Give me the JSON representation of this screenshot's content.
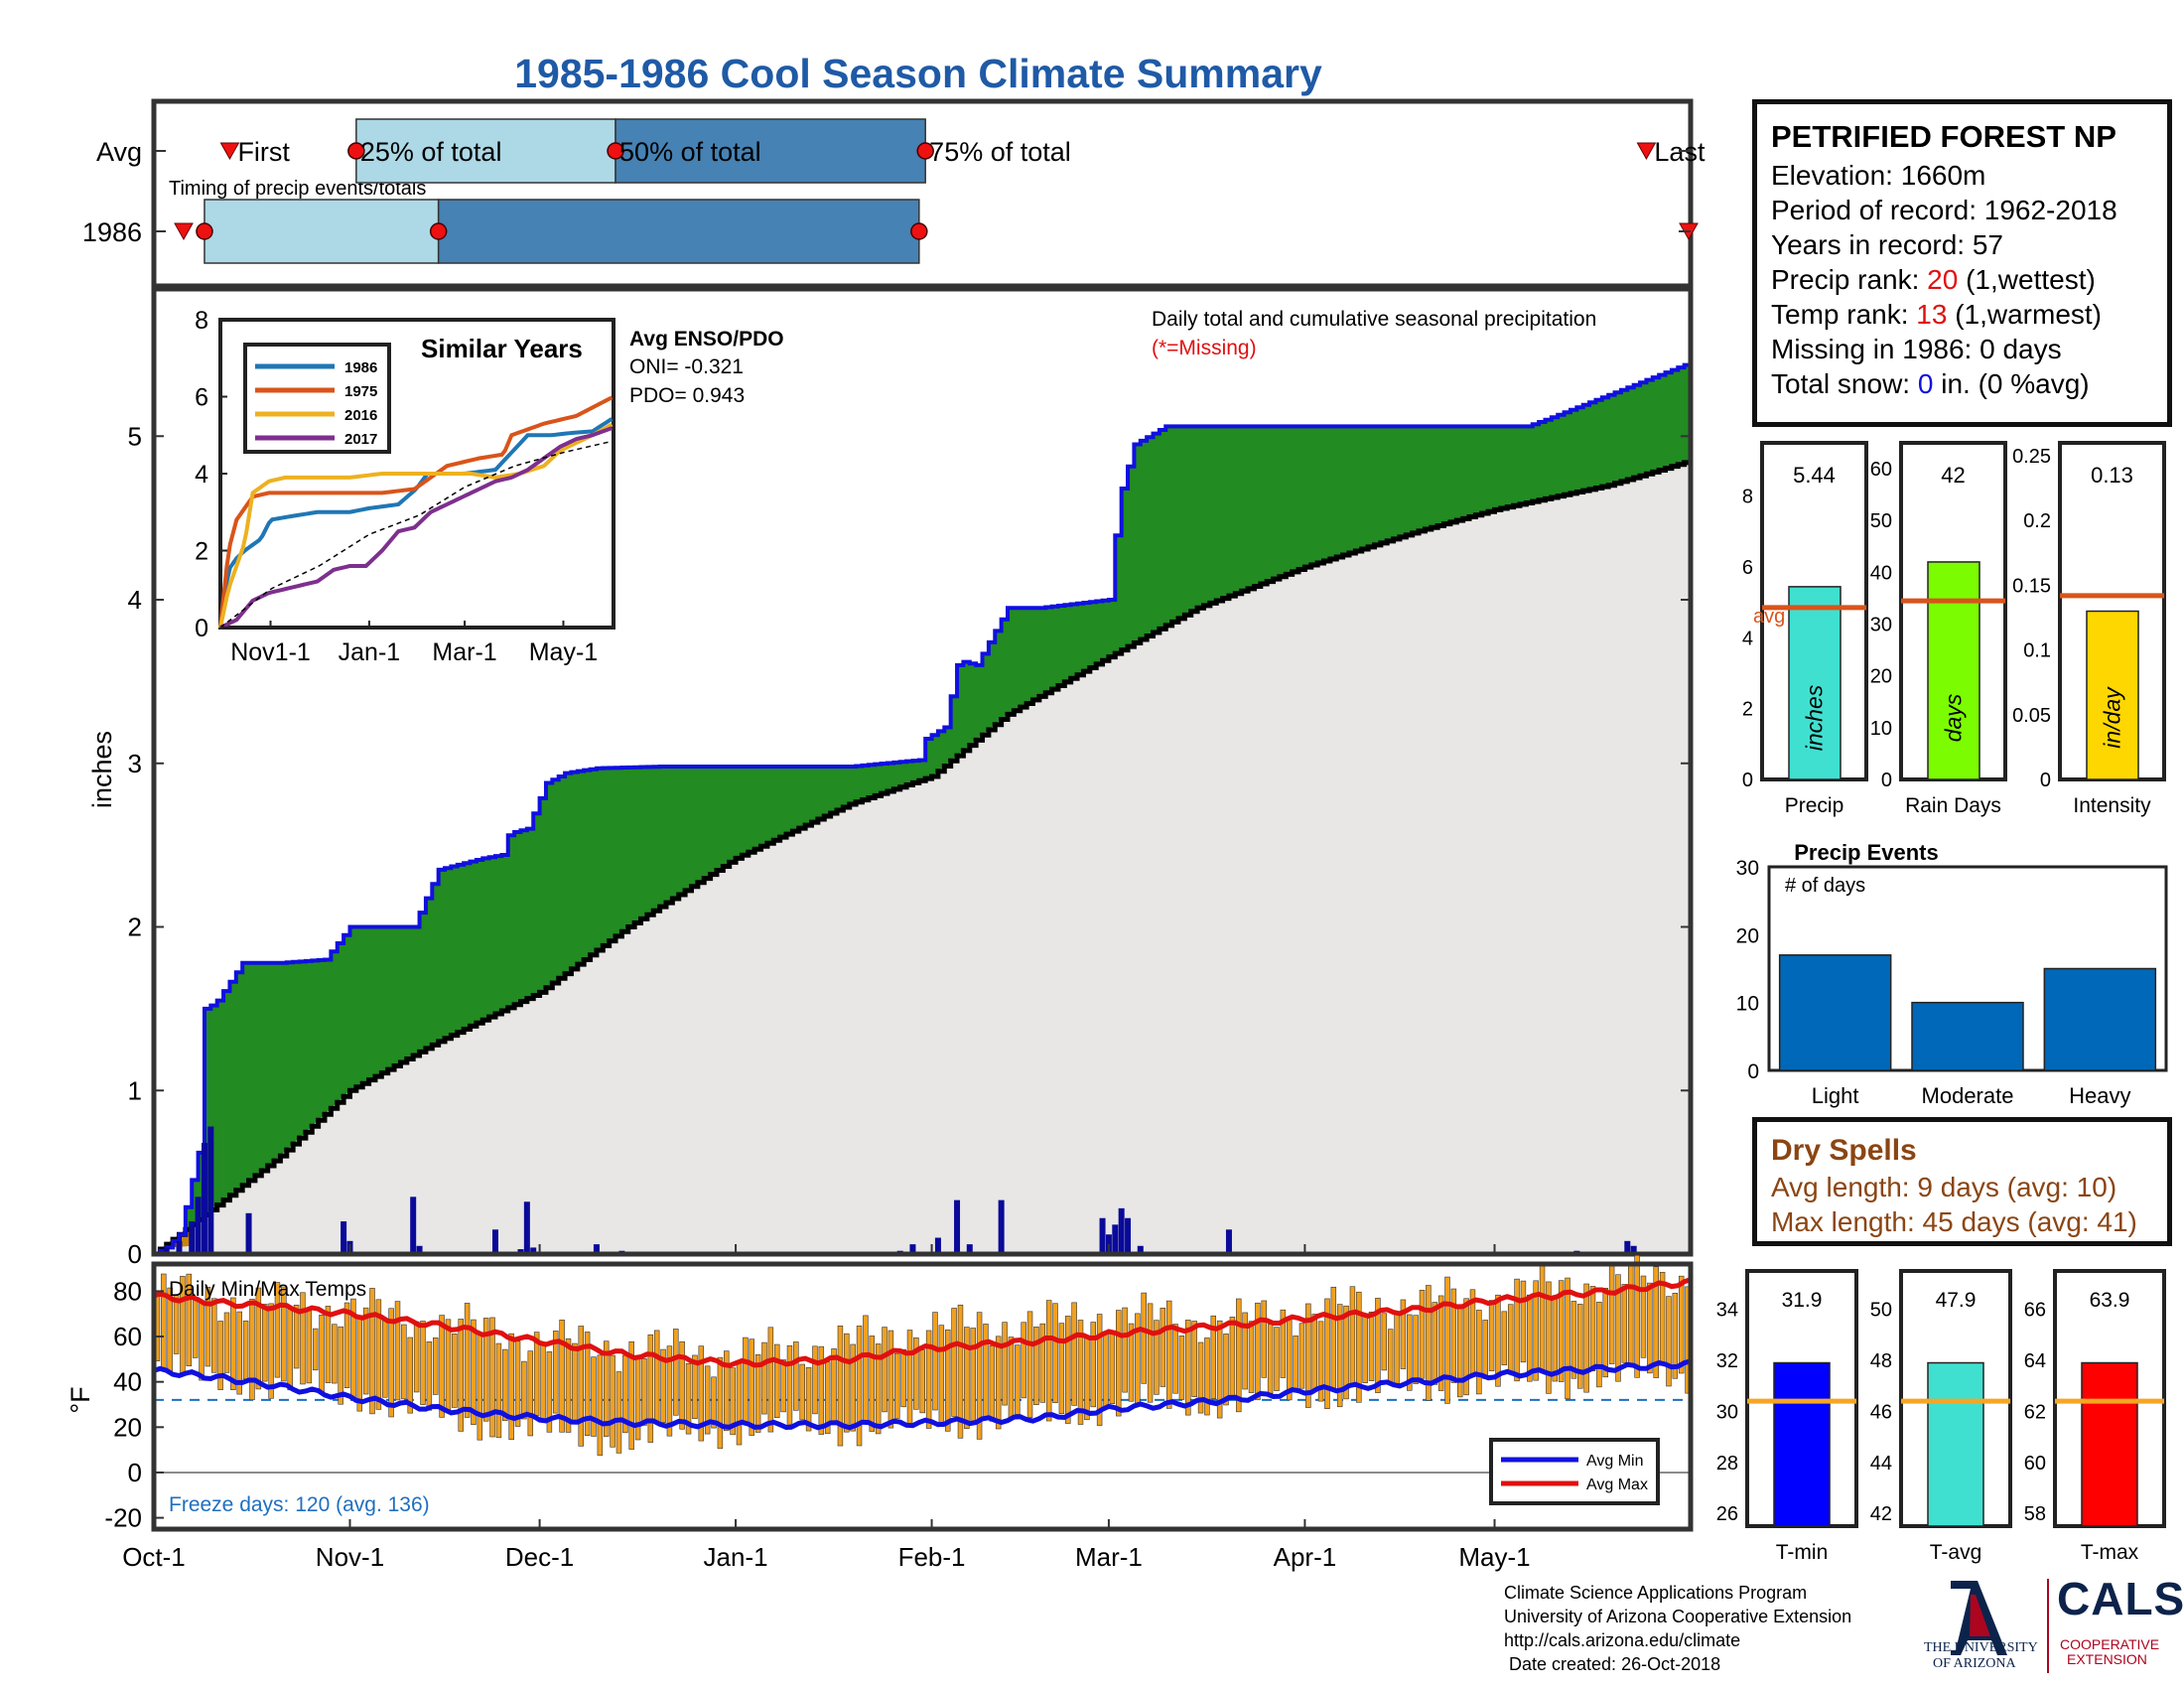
{
  "title": "1985-1986 Cool Season Climate Summary",
  "colors": {
    "title": "#1f5aa6",
    "precip_fill": "#228b22",
    "normal_fill": "#e8e7e6",
    "cum_line": "#1010e0",
    "avg_line": "#000000",
    "bar_daily": "#0a0a9a",
    "temp_bar": "#f0a020",
    "avg_max": "#e01010",
    "avg_min": "#1010e0",
    "light_blue": "#add8e6",
    "mid_blue": "#4682b4",
    "marker_red": "#ee1111",
    "dry_spells": "#8b4513",
    "freeze": "#1f6fc0"
  },
  "timing": {
    "caption": "Timing of precip events/totals",
    "row_labels": [
      "Avg",
      "1986"
    ],
    "avg_labels": [
      "First",
      "25% of total",
      "50% of total",
      "75% of total",
      "Last"
    ],
    "avg_days": [
      12,
      46,
      87,
      136,
      236
    ],
    "avg_quartiles": [
      32,
      73,
      122
    ],
    "year_days": [
      4,
      8,
      45,
      121,
      243
    ]
  },
  "station": {
    "name": "PETRIFIED FOREST NP",
    "elevation": "Elevation: 1660m",
    "period": "Period of record: 1962-2018",
    "years": "Years in record: 57",
    "precip_rank_label": "Precip rank: ",
    "precip_rank_value": "20",
    "precip_rank_note": " (1,wettest)",
    "temp_rank_label": "Temp rank: ",
    "temp_rank_value": "13",
    "temp_rank_note": " (1,warmest)",
    "missing": "Missing in 1986: 0 days",
    "snow_label": "Total snow: ",
    "snow_value": "0",
    "snow_note": " in. (0 %avg)"
  },
  "main_chart": {
    "ylabel": "inches",
    "annotation": "Daily total and cumulative seasonal precipitation",
    "missing_note": "(*=Missing)",
    "x_ticks": [
      "Oct-1",
      "Nov-1",
      "Dec-1",
      "Jan-1",
      "Feb-1",
      "Mar-1",
      "Apr-1",
      "May-1"
    ],
    "x_tick_days": [
      0,
      31,
      61,
      92,
      123,
      151,
      182,
      212
    ],
    "x_days_total": 243,
    "y_ticks": [
      "0",
      "1",
      "2",
      "3",
      "4",
      "5"
    ],
    "ylim": [
      0,
      5.9
    ],
    "enso_title": "Avg ENSO/PDO",
    "oni": "ONI= -0.321",
    "pdo": "PDO= 0.943"
  },
  "chart_data": [
    {
      "type": "area",
      "title": "",
      "ylabel": "inches",
      "series": [
        {
          "name": "cumulative_precip_1986",
          "x": [
            0,
            2,
            4,
            7,
            8,
            9,
            10,
            14,
            20,
            27,
            31,
            41,
            45,
            52,
            55,
            55.5,
            57,
            59,
            62,
            63,
            65,
            70,
            80,
            90,
            110,
            121,
            122,
            125,
            127,
            128,
            130,
            135,
            140,
            151,
            151.5,
            153,
            155,
            160,
            170,
            200,
            217,
            220,
            243
          ],
          "y": [
            0,
            0.04,
            0.12,
            0.62,
            1.5,
            1.52,
            1.55,
            1.78,
            1.78,
            1.8,
            2.0,
            2.0,
            2.35,
            2.42,
            2.44,
            2.55,
            2.58,
            2.6,
            2.88,
            2.9,
            2.94,
            2.97,
            2.98,
            2.98,
            2.98,
            3.02,
            3.15,
            3.22,
            3.6,
            3.62,
            3.6,
            3.95,
            3.95,
            4.0,
            4.25,
            4.68,
            4.95,
            5.06,
            5.06,
            5.06,
            5.06,
            5.1,
            5.45
          ]
        },
        {
          "name": "avg_cumulative_precip",
          "x": [
            0,
            10,
            20,
            31,
            45,
            61,
            75,
            92,
            110,
            123,
            135,
            151,
            165,
            182,
            200,
            212,
            230,
            243
          ],
          "y": [
            0,
            0.3,
            0.6,
            1.0,
            1.3,
            1.6,
            2.0,
            2.42,
            2.75,
            2.92,
            3.3,
            3.65,
            3.95,
            4.2,
            4.42,
            4.55,
            4.7,
            4.85
          ]
        }
      ],
      "daily_precip": [
        {
          "day": 2,
          "value": 0.04
        },
        {
          "day": 4,
          "value": 0.08
        },
        {
          "day": 6,
          "value": 0.2
        },
        {
          "day": 7,
          "value": 0.35
        },
        {
          "day": 8,
          "value": 0.68
        },
        {
          "day": 9,
          "value": 0.78
        },
        {
          "day": 15,
          "value": 0.25
        },
        {
          "day": 30,
          "value": 0.2
        },
        {
          "day": 31,
          "value": 0.08
        },
        {
          "day": 41,
          "value": 0.35
        },
        {
          "day": 42,
          "value": 0.05
        },
        {
          "day": 54,
          "value": 0.15
        },
        {
          "day": 58,
          "value": 0.03
        },
        {
          "day": 59,
          "value": 0.32
        },
        {
          "day": 60,
          "value": 0.04
        },
        {
          "day": 70,
          "value": 0.06
        },
        {
          "day": 74,
          "value": 0.02
        },
        {
          "day": 118,
          "value": 0.02
        },
        {
          "day": 120,
          "value": 0.06
        },
        {
          "day": 124,
          "value": 0.1
        },
        {
          "day": 127,
          "value": 0.33
        },
        {
          "day": 129,
          "value": 0.06
        },
        {
          "day": 134,
          "value": 0.33
        },
        {
          "day": 150,
          "value": 0.22
        },
        {
          "day": 151,
          "value": 0.12
        },
        {
          "day": 152,
          "value": 0.18
        },
        {
          "day": 153,
          "value": 0.28
        },
        {
          "day": 154,
          "value": 0.22
        },
        {
          "day": 156,
          "value": 0.05
        },
        {
          "day": 170,
          "value": 0.15
        },
        {
          "day": 225,
          "value": 0.02
        },
        {
          "day": 233,
          "value": 0.08
        },
        {
          "day": 234,
          "value": 0.05
        }
      ]
    },
    {
      "type": "line",
      "title": "Similar Years",
      "x_ticks": [
        "Nov1-1",
        "Jan-1",
        "Mar-1",
        "May-1"
      ],
      "x_tick_days": [
        31,
        92,
        151,
        212
      ],
      "ylim": [
        0,
        8
      ],
      "y_ticks": [
        "0",
        "2",
        "4",
        "6",
        "8"
      ],
      "series": [
        {
          "name": "1986",
          "color": "#1f77b4",
          "x": [
            0,
            5,
            10,
            15,
            25,
            31,
            45,
            60,
            80,
            92,
            110,
            121,
            128,
            140,
            151,
            170,
            190,
            200,
            205,
            215,
            230,
            243
          ],
          "y": [
            0,
            1.5,
            1.8,
            2.0,
            2.3,
            2.8,
            2.9,
            3.0,
            3.0,
            3.1,
            3.2,
            3.6,
            4.0,
            4.0,
            4.0,
            4.1,
            5.0,
            5.0,
            5.0,
            5.05,
            5.1,
            5.45
          ]
        },
        {
          "name": "1975",
          "color": "#d9541a",
          "x": [
            0,
            5,
            10,
            20,
            30,
            40,
            60,
            80,
            100,
            120,
            140,
            160,
            175,
            180,
            200,
            220,
            243
          ],
          "y": [
            0,
            2.0,
            2.8,
            3.4,
            3.5,
            3.5,
            3.5,
            3.5,
            3.5,
            3.6,
            4.2,
            4.4,
            4.5,
            5.0,
            5.3,
            5.5,
            6.0
          ]
        },
        {
          "name": "2016",
          "color": "#edb120",
          "x": [
            0,
            5,
            15,
            20,
            30,
            40,
            60,
            80,
            100,
            120,
            140,
            155,
            170,
            185,
            200,
            210,
            230,
            243
          ],
          "y": [
            0,
            1.0,
            2.2,
            3.5,
            3.8,
            3.9,
            3.9,
            3.9,
            4.0,
            4.0,
            4.0,
            4.0,
            3.9,
            4.0,
            4.2,
            4.6,
            5.0,
            5.3
          ]
        },
        {
          "name": "2017",
          "color": "#7e2f8e",
          "x": [
            0,
            10,
            20,
            30,
            40,
            50,
            60,
            70,
            80,
            90,
            100,
            110,
            120,
            130,
            140,
            150,
            160,
            170,
            180,
            190,
            200,
            210,
            220,
            230,
            243
          ],
          "y": [
            0,
            0.2,
            0.7,
            0.9,
            1.0,
            1.1,
            1.2,
            1.5,
            1.6,
            1.6,
            2.0,
            2.5,
            2.6,
            3.0,
            3.2,
            3.4,
            3.6,
            3.8,
            3.9,
            4.1,
            4.4,
            4.7,
            4.9,
            5.0,
            5.2
          ]
        },
        {
          "name": "avg",
          "color": "#000000",
          "x": [
            0,
            31,
            61,
            92,
            123,
            151,
            182,
            212,
            243
          ],
          "y": [
            0,
            1.0,
            1.6,
            2.42,
            2.92,
            3.65,
            4.2,
            4.55,
            4.85
          ]
        }
      ]
    },
    {
      "type": "bar",
      "title": "",
      "categories": [
        "Precip",
        "Rain Days",
        "Intensity"
      ],
      "values": [
        5.44,
        42,
        0.13
      ],
      "value_labels": [
        "5.44",
        "42",
        "0.13"
      ],
      "avg": [
        4.85,
        34.5,
        0.142
      ],
      "ylim": [
        [
          0,
          9.5
        ],
        [
          0,
          65
        ],
        [
          0,
          0.26
        ]
      ],
      "y_ticks": [
        [
          "0",
          "2",
          "4",
          "6",
          "8"
        ],
        [
          "0",
          "10",
          "20",
          "30",
          "40",
          "50",
          "60"
        ],
        [
          "0",
          "0.05",
          "0.1",
          "0.15",
          "0.2",
          "0.25"
        ]
      ],
      "y_tick_values": [
        [
          0,
          2,
          4,
          6,
          8
        ],
        [
          0,
          10,
          20,
          30,
          40,
          50,
          60
        ],
        [
          0,
          0.05,
          0.1,
          0.15,
          0.2,
          0.25
        ]
      ],
      "units": [
        "inches",
        "days",
        "in/day"
      ],
      "bar_colors": [
        "#40e0d0",
        "#7cfc00",
        "#ffd700"
      ],
      "avg_label": "avg"
    },
    {
      "type": "bar",
      "title": "Precip Events",
      "ylabel": "# of days",
      "categories": [
        "Light",
        "Moderate",
        "Heavy"
      ],
      "values": [
        17,
        10,
        15
      ],
      "ylim": [
        0,
        30
      ],
      "y_ticks": [
        "0",
        "10",
        "20",
        "30"
      ]
    },
    {
      "type": "bar",
      "title": "Daily Min/Max Temps",
      "ylabel": "°F",
      "ylim": [
        -25,
        92
      ],
      "y_ticks": [
        "-20",
        "0",
        "20",
        "40",
        "60",
        "80"
      ],
      "y_tick_values": [
        -20,
        0,
        20,
        40,
        60,
        80
      ],
      "freeze_line": 32,
      "avg_max": {
        "name": "Avg Max",
        "x": [
          0,
          10,
          20,
          31,
          45,
          61,
          75,
          92,
          110,
          123,
          140,
          151,
          170,
          182,
          200,
          212,
          230,
          243
        ],
        "y": [
          78,
          75,
          73,
          70,
          65,
          58,
          52,
          48,
          50,
          55,
          58,
          61,
          65,
          68,
          72,
          76,
          80,
          84
        ]
      },
      "avg_min": {
        "name": "Avg Min",
        "x": [
          0,
          10,
          20,
          31,
          45,
          61,
          75,
          92,
          110,
          123,
          140,
          151,
          170,
          182,
          200,
          212,
          230,
          243
        ],
        "y": [
          45,
          42,
          38,
          33,
          28,
          24,
          22,
          21,
          21,
          22,
          24,
          28,
          32,
          36,
          40,
          43,
          46,
          48
        ]
      },
      "daily_max_anchor": {
        "x": [
          0,
          15,
          31,
          45,
          61,
          75,
          92,
          110,
          123,
          140,
          151,
          170,
          182,
          200,
          212,
          230,
          243
        ],
        "y": [
          80,
          75,
          72,
          66,
          58,
          55,
          52,
          58,
          64,
          66,
          70,
          66,
          72,
          75,
          78,
          85,
          86
        ]
      },
      "daily_min_anchor": {
        "x": [
          0,
          15,
          31,
          45,
          61,
          75,
          92,
          110,
          123,
          140,
          151,
          170,
          182,
          200,
          212,
          230,
          243
        ],
        "y": [
          45,
          40,
          35,
          25,
          18,
          15,
          20,
          20,
          22,
          25,
          30,
          32,
          35,
          38,
          40,
          42,
          44
        ]
      }
    },
    {
      "type": "bar",
      "title": "",
      "categories": [
        "T-min",
        "T-avg",
        "T-max"
      ],
      "values": [
        31.9,
        47.9,
        63.9
      ],
      "value_labels": [
        "31.9",
        "47.9",
        "63.9"
      ],
      "avg": [
        30.4,
        46.4,
        62.4
      ],
      "ylim": [
        [
          25.5,
          35.5
        ],
        [
          41.5,
          51.5
        ],
        [
          57.5,
          67.5
        ]
      ],
      "y_ticks": [
        [
          "26",
          "28",
          "30",
          "32",
          "34"
        ],
        [
          "42",
          "44",
          "46",
          "48",
          "50"
        ],
        [
          "58",
          "60",
          "62",
          "64",
          "66"
        ]
      ],
      "y_tick_values": [
        [
          26,
          28,
          30,
          32,
          34
        ],
        [
          42,
          44,
          46,
          48,
          50
        ],
        [
          58,
          60,
          62,
          64,
          66
        ]
      ],
      "bar_colors": [
        "#0000ff",
        "#40e0d0",
        "#ff0000"
      ]
    }
  ],
  "temp_panel": {
    "freeze_text": "Freeze days: 120 (avg. 136)"
  },
  "dry_spells": {
    "title": "Dry Spells",
    "avg": "Avg length: 9 days (avg: 10)",
    "max": "Max length: 45 days (avg: 41)"
  },
  "footer": {
    "line1": "Climate Science Applications Program",
    "line2": "University of Arizona Cooperative Extension",
    "line3": "http://cals.arizona.edu/climate",
    "line4": " Date created: 26-Oct-2018",
    "ua_line1": "THE UNIVERSITY",
    "ua_line2": "OF ARIZONA",
    "cals": "CALS",
    "coop1": "COOPERATIVE",
    "coop2": "EXTENSION"
  }
}
